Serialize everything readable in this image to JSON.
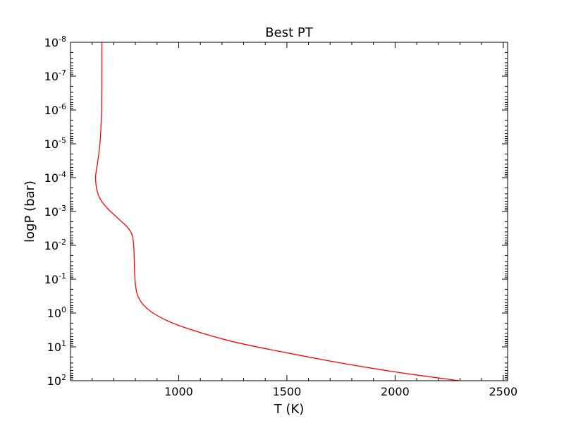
{
  "chart_data": {
    "type": "line",
    "title": "Best PT",
    "xlabel": "T (K)",
    "ylabel": "logP (bar)",
    "xlim": [
      500,
      2520
    ],
    "ylim_log10": [
      -8,
      2
    ],
    "y_axis_inverted": true,
    "y_scale": "log",
    "grid": false,
    "x_ticks": [
      {
        "value": 1000,
        "label": "1000"
      },
      {
        "value": 1500,
        "label": "1500"
      },
      {
        "value": 2000,
        "label": "2000"
      },
      {
        "value": 2500,
        "label": "2500"
      }
    ],
    "y_ticks": [
      {
        "exp": -8,
        "base": "10",
        "sup": "-8"
      },
      {
        "exp": -7,
        "base": "10",
        "sup": "-7"
      },
      {
        "exp": -6,
        "base": "10",
        "sup": "-6"
      },
      {
        "exp": -5,
        "base": "10",
        "sup": "-5"
      },
      {
        "exp": -4,
        "base": "10",
        "sup": "-4"
      },
      {
        "exp": -3,
        "base": "10",
        "sup": "-3"
      },
      {
        "exp": -2,
        "base": "10",
        "sup": "-2"
      },
      {
        "exp": -1,
        "base": "10",
        "sup": "-1"
      },
      {
        "exp": 0,
        "base": "10",
        "sup": "0"
      },
      {
        "exp": 1,
        "base": "10",
        "sup": "1"
      },
      {
        "exp": 2,
        "base": "10",
        "sup": "2"
      }
    ],
    "series": [
      {
        "color": "#ff0000",
        "points": [
          {
            "T": 645,
            "P": 1e-08
          },
          {
            "T": 645,
            "P": 1e-07
          },
          {
            "T": 644,
            "P": 1e-06
          },
          {
            "T": 641,
            "P": 3e-06
          },
          {
            "T": 636,
            "P": 1e-05
          },
          {
            "T": 627,
            "P": 3e-05
          },
          {
            "T": 618,
            "P": 7e-05
          },
          {
            "T": 616,
            "P": 0.0001
          },
          {
            "T": 620,
            "P": 0.0002
          },
          {
            "T": 635,
            "P": 0.0004
          },
          {
            "T": 670,
            "P": 0.0008
          },
          {
            "T": 720,
            "P": 0.0016
          },
          {
            "T": 765,
            "P": 0.003
          },
          {
            "T": 785,
            "P": 0.005
          },
          {
            "T": 792,
            "P": 0.01
          },
          {
            "T": 795,
            "P": 0.03
          },
          {
            "T": 798,
            "P": 0.1
          },
          {
            "T": 810,
            "P": 0.3
          },
          {
            "T": 850,
            "P": 0.7
          },
          {
            "T": 930,
            "P": 1.5
          },
          {
            "T": 1050,
            "P": 3
          },
          {
            "T": 1250,
            "P": 7
          },
          {
            "T": 1500,
            "P": 15
          },
          {
            "T": 1750,
            "P": 30
          },
          {
            "T": 2000,
            "P": 55
          },
          {
            "T": 2150,
            "P": 75
          },
          {
            "T": 2295,
            "P": 100
          }
        ]
      }
    ]
  }
}
